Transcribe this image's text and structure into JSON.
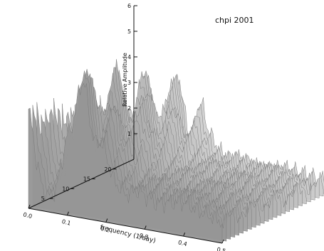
{
  "chart_data": {
    "type": "surface",
    "title": "chpi 2001",
    "xlabel": "frequency (1/day)",
    "ylabel": "",
    "zlabel": "Relative Amplitude",
    "xlim": [
      0.0,
      0.5
    ],
    "ylim": [
      0,
      25
    ],
    "zlim": [
      0,
      6
    ],
    "x_ticks": [
      "0.0",
      "0.1",
      "0.2",
      "0.3",
      "0.4",
      "0.5"
    ],
    "y_ticks": [
      "5",
      "10",
      "15",
      "20"
    ],
    "z_ticks": [
      "1",
      "2",
      "3",
      "4",
      "5",
      "6"
    ],
    "profile": {
      "x": [
        0.0,
        0.01,
        0.02,
        0.035,
        0.05,
        0.07,
        0.085,
        0.1,
        0.115,
        0.13,
        0.145,
        0.16,
        0.18,
        0.2,
        0.22,
        0.25,
        0.28,
        0.3,
        0.33,
        0.36,
        0.4,
        0.44,
        0.47,
        0.5
      ],
      "z": [
        3.2,
        2.6,
        1.6,
        0.8,
        0.5,
        0.7,
        1.6,
        2.6,
        3.6,
        4.2,
        3.5,
        2.8,
        3.0,
        2.2,
        1.4,
        1.0,
        1.2,
        1.1,
        0.9,
        1.0,
        1.1,
        0.9,
        0.8,
        0.7
      ]
    },
    "grid": false
  }
}
